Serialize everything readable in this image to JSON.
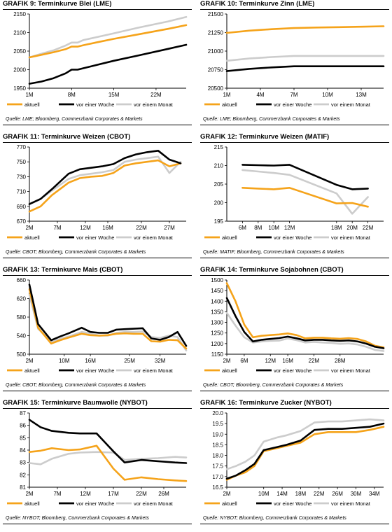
{
  "colors": {
    "aktuell": "#f5a31a",
    "woche": "#000000",
    "monat": "#cccccc"
  },
  "chart_data": [
    {
      "type": "line",
      "title": "GRAFIK 9: Terminkurve Blei (LME)",
      "source": "Quelle: LME; Bloomberg, Commerzbank Corporates & Markets",
      "ylim": [
        1950,
        2150
      ],
      "yticks": [
        "1950",
        "2000",
        "2050",
        "2100",
        "2150"
      ],
      "xlim": [
        1,
        27
      ],
      "xticks": [
        {
          "x": 1,
          "label": "1M"
        },
        {
          "x": 8,
          "label": "8M"
        },
        {
          "x": 15,
          "label": "15M"
        },
        {
          "x": 22,
          "label": "22M"
        }
      ],
      "series": [
        {
          "name": "aktuell",
          "x": [
            1,
            3,
            5,
            7,
            8,
            9,
            10,
            12,
            15,
            19,
            24,
            27
          ],
          "y": [
            2033,
            2040,
            2047,
            2055,
            2062,
            2062,
            2066,
            2073,
            2083,
            2095,
            2110,
            2120
          ]
        },
        {
          "name": "vor einer Woche",
          "x": [
            1,
            3,
            5,
            7,
            8,
            9,
            10,
            12,
            15,
            19,
            24,
            27
          ],
          "y": [
            1962,
            1968,
            1977,
            1990,
            2000,
            2000,
            2004,
            2012,
            2024,
            2038,
            2056,
            2067
          ]
        },
        {
          "name": "vor einem Monat",
          "x": [
            1,
            3,
            5,
            7,
            8,
            9,
            10,
            12,
            15,
            19,
            24,
            27
          ],
          "y": [
            2033,
            2043,
            2052,
            2065,
            2073,
            2073,
            2080,
            2087,
            2098,
            2113,
            2130,
            2142
          ]
        }
      ]
    },
    {
      "type": "line",
      "title": "GRAFIK 10: Terminkurve Zinn (LME)",
      "source": "Quelle: LME; Bloomberg, Commerzbank Corporates & Markets",
      "ylim": [
        20500,
        21500
      ],
      "yticks": [
        "20500",
        "20750",
        "21000",
        "21250",
        "21500"
      ],
      "xlim": [
        1,
        15
      ],
      "xticks": [
        {
          "x": 1,
          "label": "1M"
        },
        {
          "x": 4,
          "label": "4M"
        },
        {
          "x": 7,
          "label": "7M"
        },
        {
          "x": 10,
          "label": "10M"
        },
        {
          "x": 13,
          "label": "13M"
        }
      ],
      "series": [
        {
          "name": "aktuell",
          "x": [
            1,
            3,
            5,
            7,
            9,
            11,
            13,
            15
          ],
          "y": [
            21245,
            21275,
            21295,
            21310,
            21318,
            21323,
            21328,
            21335
          ]
        },
        {
          "name": "vor einer Woche",
          "x": [
            1,
            3,
            5,
            7,
            9,
            11,
            13,
            15
          ],
          "y": [
            20730,
            20760,
            20780,
            20795,
            20795,
            20795,
            20795,
            20795
          ]
        },
        {
          "name": "vor einem Monat",
          "x": [
            1,
            3,
            5,
            7,
            9,
            11,
            13,
            15
          ],
          "y": [
            20870,
            20900,
            20920,
            20935,
            20935,
            20935,
            20935,
            20935
          ]
        }
      ]
    },
    {
      "type": "line",
      "title": "GRAFIK 11: Terminkurve Weizen (CBOT)",
      "source": "Quelle: CBOT; Bloomberg, Commerzbank Corporates & Markets",
      "ylim": [
        670,
        770
      ],
      "yticks": [
        "670",
        "690",
        "710",
        "730",
        "750",
        "770"
      ],
      "xlim": [
        2,
        30
      ],
      "xticks": [
        {
          "x": 2,
          "label": "2M"
        },
        {
          "x": 7,
          "label": "7M"
        },
        {
          "x": 12,
          "label": "12M"
        },
        {
          "x": 16,
          "label": "16M"
        },
        {
          "x": 22,
          "label": "22M"
        },
        {
          "x": 27,
          "label": "27M"
        }
      ],
      "series": [
        {
          "name": "aktuell",
          "x": [
            2,
            4,
            6,
            9,
            11,
            13,
            15,
            17,
            19,
            21,
            23,
            25,
            27,
            29
          ],
          "y": [
            683,
            690,
            705,
            722,
            728,
            730,
            731,
            735,
            745,
            748,
            750,
            752,
            744,
            748
          ]
        },
        {
          "name": "vor einer Woche",
          "x": [
            2,
            4,
            6,
            9,
            11,
            13,
            15,
            17,
            19,
            21,
            23,
            25,
            27,
            29
          ],
          "y": [
            693,
            700,
            713,
            734,
            740,
            742,
            744,
            747,
            755,
            760,
            763,
            765,
            753,
            748
          ]
        },
        {
          "name": "vor einem Monat",
          "x": [
            2,
            4,
            6,
            9,
            11,
            13,
            15,
            17,
            19,
            21,
            23,
            25,
            27,
            29
          ],
          "y": [
            693,
            700,
            711,
            727,
            732,
            734,
            736,
            739,
            750,
            753,
            755,
            757,
            735,
            750
          ]
        }
      ]
    },
    {
      "type": "line",
      "title": "GRAFIK 12: Terminkurve Weizen (MATIF)",
      "source": "Quelle: MATIF; Bloomberg, Commerzbank Corporates & Markets",
      "ylim": [
        195,
        215
      ],
      "yticks": [
        "195",
        "200",
        "205",
        "210",
        "215"
      ],
      "xlim": [
        4,
        24
      ],
      "xticks": [
        {
          "x": 6,
          "label": "6M"
        },
        {
          "x": 8,
          "label": "8M"
        },
        {
          "x": 10,
          "label": "10M"
        },
        {
          "x": 12,
          "label": "12M"
        },
        {
          "x": 18,
          "label": "18M"
        },
        {
          "x": 20,
          "label": "20M"
        },
        {
          "x": 22,
          "label": "22M"
        }
      ],
      "series": [
        {
          "name": "aktuell",
          "x": [
            6,
            8,
            10,
            12,
            18,
            20,
            22
          ],
          "y": [
            204.0,
            203.8,
            203.6,
            204.0,
            199.8,
            199.9,
            198.9
          ]
        },
        {
          "name": "vor einer Woche",
          "x": [
            6,
            8,
            10,
            12,
            18,
            20,
            22
          ],
          "y": [
            210.2,
            210.1,
            210.0,
            210.2,
            204.8,
            203.6,
            203.8
          ]
        },
        {
          "name": "vor einem Monat",
          "x": [
            6,
            8,
            10,
            12,
            18,
            20,
            22
          ],
          "y": [
            208.8,
            208.4,
            208.0,
            207.5,
            202.5,
            197.0,
            201.5
          ]
        }
      ]
    },
    {
      "type": "line",
      "title": "GRAFIK 13: Terminkurve Mais (CBOT)",
      "source": "Quelle: CBOT; Bloomberg, Commerzbank Corporates & Markets",
      "ylim": [
        500,
        660
      ],
      "yticks": [
        "500",
        "540",
        "580",
        "620",
        "660"
      ],
      "xlim": [
        2,
        38
      ],
      "xticks": [
        {
          "x": 2,
          "label": "2M"
        },
        {
          "x": 10,
          "label": "10M"
        },
        {
          "x": 16,
          "label": "16M"
        },
        {
          "x": 25,
          "label": "25M"
        },
        {
          "x": 32,
          "label": "32M"
        }
      ],
      "series": [
        {
          "name": "aktuell",
          "x": [
            2,
            4,
            7,
            9,
            11,
            14,
            16,
            18,
            20,
            22,
            24,
            26,
            28,
            30,
            32,
            34,
            36,
            38
          ],
          "y": [
            640,
            557,
            523,
            530,
            536,
            544,
            541,
            540,
            541,
            544,
            545,
            544,
            544,
            528,
            527,
            531,
            530,
            512
          ]
        },
        {
          "name": "vor einer Woche",
          "x": [
            2,
            4,
            7,
            9,
            11,
            14,
            16,
            18,
            20,
            22,
            24,
            26,
            28,
            30,
            32,
            34,
            36,
            38
          ],
          "y": [
            650,
            565,
            530,
            538,
            545,
            557,
            548,
            546,
            546,
            553,
            554,
            555,
            556,
            534,
            531,
            537,
            548,
            518
          ]
        },
        {
          "name": "vor einem Monat",
          "x": [
            2,
            4,
            7,
            9,
            11,
            14,
            16,
            18,
            20,
            22,
            24,
            26,
            28,
            30,
            32,
            34,
            36,
            38
          ],
          "y": [
            628,
            555,
            527,
            533,
            538,
            548,
            545,
            540,
            540,
            546,
            548,
            548,
            549,
            537,
            535,
            540,
            537,
            508
          ]
        }
      ]
    },
    {
      "type": "line",
      "title": "GRAFIK 14: Terminkurve Sojabohnen (CBOT)",
      "source": "Quelle: CBOT; Bloomberg, Commerzbank Corporates & Markets",
      "ylim": [
        1150,
        1500
      ],
      "yticks": [
        "1150",
        "1200",
        "1250",
        "1300",
        "1350",
        "1400",
        "1450",
        "1500"
      ],
      "xlim": [
        2,
        38
      ],
      "xticks": [
        {
          "x": 2,
          "label": "2M"
        },
        {
          "x": 6,
          "label": "6M"
        },
        {
          "x": 12,
          "label": "12M"
        },
        {
          "x": 16,
          "label": "16M"
        },
        {
          "x": 22,
          "label": "22M"
        },
        {
          "x": 28,
          "label": "28M"
        }
      ],
      "series": [
        {
          "name": "aktuell",
          "x": [
            2,
            4,
            6,
            8,
            10,
            12,
            14,
            16,
            18,
            20,
            22,
            24,
            26,
            28,
            30,
            32,
            34,
            36,
            38
          ],
          "y": [
            1485,
            1400,
            1290,
            1230,
            1237,
            1240,
            1243,
            1248,
            1240,
            1225,
            1228,
            1228,
            1225,
            1223,
            1226,
            1222,
            1210,
            1190,
            1182
          ]
        },
        {
          "name": "vor einer Woche",
          "x": [
            2,
            4,
            6,
            8,
            10,
            12,
            14,
            16,
            18,
            20,
            22,
            24,
            26,
            28,
            30,
            32,
            34,
            36,
            38
          ],
          "y": [
            1415,
            1330,
            1255,
            1210,
            1218,
            1222,
            1226,
            1233,
            1225,
            1215,
            1218,
            1218,
            1215,
            1213,
            1215,
            1210,
            1200,
            1185,
            1178
          ]
        },
        {
          "name": "vor einem Monat",
          "x": [
            2,
            4,
            6,
            8,
            10,
            12,
            14,
            16,
            18,
            20,
            22,
            24,
            26,
            28,
            30,
            32,
            34,
            36,
            38
          ],
          "y": [
            1345,
            1285,
            1230,
            1205,
            1210,
            1213,
            1214,
            1224,
            1216,
            1205,
            1208,
            1205,
            1203,
            1199,
            1201,
            1196,
            1185,
            1170,
            1165
          ]
        }
      ]
    },
    {
      "type": "line",
      "title": "GRAFIK 15: Terminkurve Baumwolle (NYBOT)",
      "source": "Quelle: NYBOT; Bloomberg, Commerzbank Corporates & Markets",
      "ylim": [
        81,
        87
      ],
      "yticks": [
        "81",
        "82",
        "83",
        "84",
        "85",
        "86",
        "87"
      ],
      "xlim": [
        2,
        30
      ],
      "xticks": [
        {
          "x": 2,
          "label": "2M"
        },
        {
          "x": 7,
          "label": "7M"
        },
        {
          "x": 12,
          "label": "12M"
        },
        {
          "x": 17,
          "label": "17M"
        },
        {
          "x": 22,
          "label": "22M"
        },
        {
          "x": 26,
          "label": "26M"
        }
      ],
      "series": [
        {
          "name": "aktuell",
          "x": [
            2,
            4,
            6,
            9,
            11,
            14,
            17,
            19,
            22,
            25,
            28,
            30
          ],
          "y": [
            83.85,
            83.95,
            84.15,
            84.0,
            84.05,
            84.35,
            82.5,
            81.6,
            81.8,
            81.65,
            81.55,
            81.5
          ]
        },
        {
          "name": "vor einer Woche",
          "x": [
            2,
            4,
            6,
            9,
            11,
            14,
            17,
            19,
            22,
            25,
            28,
            30
          ],
          "y": [
            86.45,
            85.85,
            85.55,
            85.4,
            85.35,
            85.35,
            83.9,
            83.0,
            83.2,
            83.1,
            83.0,
            82.95
          ]
        },
        {
          "name": "vor einem Monat",
          "x": [
            2,
            4,
            6,
            9,
            11,
            14,
            17,
            19,
            22,
            25,
            28,
            30
          ],
          "y": [
            82.95,
            82.85,
            83.3,
            83.7,
            83.8,
            83.85,
            83.8,
            83.2,
            83.3,
            83.35,
            83.45,
            83.4
          ]
        }
      ]
    },
    {
      "type": "line",
      "title": "GRAFIK 16: Terminkurve Zucker (NYBOT)",
      "source": "Quelle: NYBOT; Bloomberg, Commerzbank Corporates & Markets",
      "ylim": [
        16.5,
        20.0
      ],
      "yticks": [
        "16.5",
        "17.0",
        "17.5",
        "18.0",
        "18.5",
        "19.0",
        "19.5",
        "20.0"
      ],
      "xlim": [
        2,
        36
      ],
      "xticks": [
        {
          "x": 2,
          "label": "2M"
        },
        {
          "x": 10,
          "label": "10M"
        },
        {
          "x": 14,
          "label": "14M"
        },
        {
          "x": 18,
          "label": "18M"
        },
        {
          "x": 22,
          "label": "22M"
        },
        {
          "x": 26,
          "label": "26M"
        },
        {
          "x": 30,
          "label": "30M"
        },
        {
          "x": 34,
          "label": "34M"
        }
      ],
      "series": [
        {
          "name": "aktuell",
          "x": [
            2,
            4,
            6,
            8,
            10,
            13,
            15,
            18,
            21,
            24,
            27,
            30,
            33,
            36
          ],
          "y": [
            16.85,
            17.05,
            17.2,
            17.5,
            18.2,
            18.35,
            18.45,
            18.6,
            19.0,
            19.1,
            19.1,
            19.1,
            19.2,
            19.35
          ]
        },
        {
          "name": "vor einer Woche",
          "x": [
            2,
            4,
            6,
            8,
            10,
            13,
            15,
            18,
            21,
            24,
            27,
            30,
            33,
            36
          ],
          "y": [
            16.9,
            17.05,
            17.3,
            17.6,
            18.25,
            18.4,
            18.5,
            18.7,
            19.2,
            19.25,
            19.25,
            19.3,
            19.35,
            19.5
          ]
        },
        {
          "name": "vor einem Monat",
          "x": [
            2,
            4,
            6,
            8,
            10,
            13,
            15,
            18,
            21,
            24,
            27,
            30,
            33,
            36
          ],
          "y": [
            17.35,
            17.5,
            17.7,
            18.0,
            18.65,
            18.85,
            18.95,
            19.15,
            19.55,
            19.6,
            19.6,
            19.65,
            19.7,
            19.65
          ]
        }
      ]
    }
  ]
}
